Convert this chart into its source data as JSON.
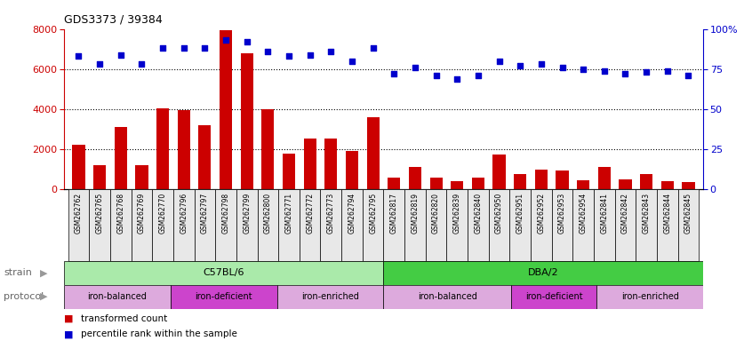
{
  "title": "GDS3373 / 39384",
  "samples": [
    "GSM262762",
    "GSM262765",
    "GSM262768",
    "GSM262769",
    "GSM262770",
    "GSM262796",
    "GSM262797",
    "GSM262798",
    "GSM262799",
    "GSM262800",
    "GSM262771",
    "GSM262772",
    "GSM262773",
    "GSM262794",
    "GSM262795",
    "GSM262817",
    "GSM262819",
    "GSM262820",
    "GSM262839",
    "GSM262840",
    "GSM262950",
    "GSM262951",
    "GSM262952",
    "GSM262953",
    "GSM262954",
    "GSM262841",
    "GSM262842",
    "GSM262843",
    "GSM262844",
    "GSM262845"
  ],
  "bar_values": [
    2200,
    1200,
    3100,
    1200,
    4050,
    3950,
    3200,
    7950,
    6800,
    4000,
    1800,
    2550,
    2550,
    1900,
    3600,
    600,
    1100,
    600,
    420,
    600,
    1750,
    750,
    1000,
    950,
    450,
    1100,
    480,
    750,
    420,
    380
  ],
  "scatter_values": [
    83,
    78,
    84,
    78,
    88,
    88,
    88,
    93,
    92,
    86,
    83,
    84,
    86,
    80,
    88,
    72,
    76,
    71,
    69,
    71,
    80,
    77,
    78,
    76,
    75,
    74,
    72,
    73,
    74,
    71
  ],
  "bar_color": "#cc0000",
  "scatter_color": "#0000cc",
  "ylim_left": [
    0,
    8000
  ],
  "ylim_right": [
    0,
    100
  ],
  "yticks_left": [
    0,
    2000,
    4000,
    6000,
    8000
  ],
  "yticks_right": [
    0,
    25,
    50,
    75,
    100
  ],
  "ytick_labels_right": [
    "0",
    "25",
    "50",
    "75",
    "100%"
  ],
  "grid_lines": [
    2000,
    4000,
    6000
  ],
  "strain_groups": [
    {
      "label": "C57BL/6",
      "start": 0,
      "end": 15,
      "color": "#aaeaaa"
    },
    {
      "label": "DBA/2",
      "start": 15,
      "end": 30,
      "color": "#44cc44"
    }
  ],
  "protocol_groups": [
    {
      "label": "iron-balanced",
      "start": 0,
      "end": 5,
      "color": "#ddaadd"
    },
    {
      "label": "iron-deficient",
      "start": 5,
      "end": 10,
      "color": "#cc44cc"
    },
    {
      "label": "iron-enriched",
      "start": 10,
      "end": 15,
      "color": "#ddaadd"
    },
    {
      "label": "iron-balanced",
      "start": 15,
      "end": 21,
      "color": "#ddaadd"
    },
    {
      "label": "iron-deficient",
      "start": 21,
      "end": 25,
      "color": "#cc44cc"
    },
    {
      "label": "iron-enriched",
      "start": 25,
      "end": 30,
      "color": "#ddaadd"
    }
  ],
  "legend_items": [
    {
      "label": "transformed count",
      "color": "#cc0000"
    },
    {
      "label": "percentile rank within the sample",
      "color": "#0000cc"
    }
  ],
  "strain_label": "strain",
  "protocol_label": "protocol",
  "bg_color": "#e8e8e8"
}
